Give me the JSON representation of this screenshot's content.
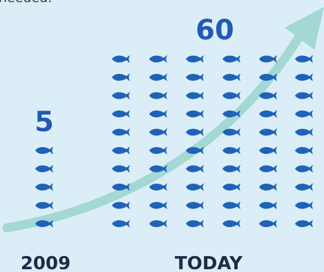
{
  "intro_fragment": "needed.",
  "colors": {
    "background": "#dbeef8",
    "fish": "#1f62b8",
    "count_text": "#2159b6",
    "year_text": "#1f2a44",
    "trend_arrow": "#a3d8d4"
  },
  "chart_data": {
    "type": "pictograph",
    "unit_icon": "fish-icon",
    "categories": [
      "2009",
      "TODAY"
    ],
    "values": [
      5,
      60
    ],
    "value_labels": [
      "5",
      "60"
    ],
    "trend": "increasing"
  }
}
